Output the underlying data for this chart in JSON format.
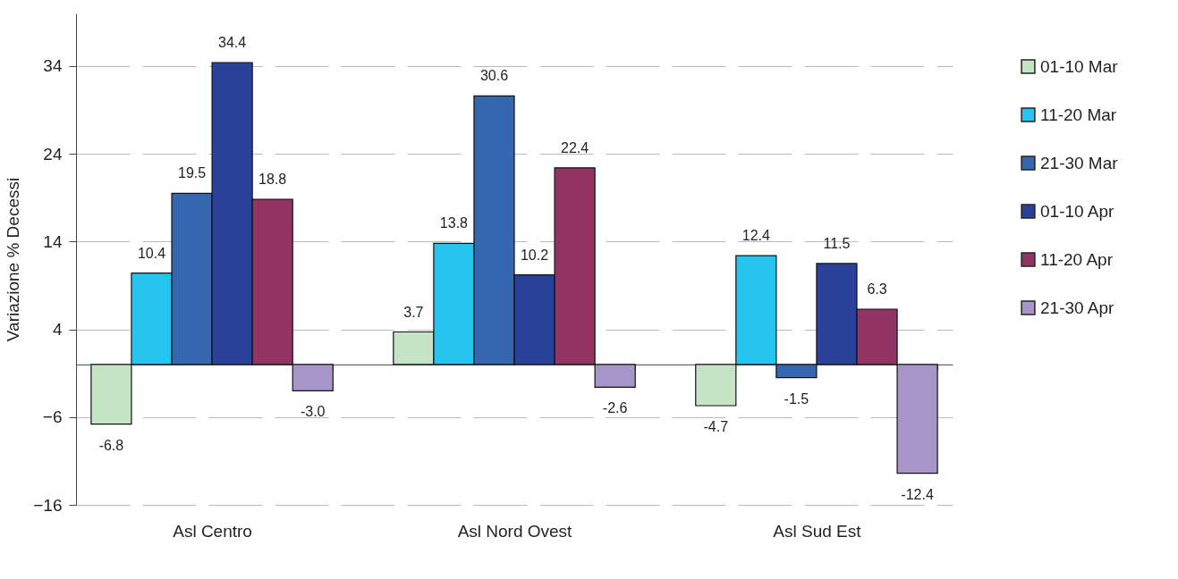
{
  "chart_data": {
    "type": "bar",
    "ylabel": "Variazione % Decessi",
    "categories": [
      "Asl Centro",
      "Asl Nord Ovest",
      "Asl Sud Est"
    ],
    "series": [
      {
        "name": "01-10 Mar",
        "color": "#c5e4c5",
        "values": [
          -6.8,
          3.7,
          -4.7
        ],
        "value_labels": [
          "-6.8",
          "3.7",
          "-4.7"
        ]
      },
      {
        "name": "11-20 Mar",
        "color": "#27c4f0",
        "values": [
          10.4,
          13.8,
          12.4
        ],
        "value_labels": [
          "10.4",
          "13.8",
          "12.4"
        ]
      },
      {
        "name": "21-30 Mar",
        "color": "#3566b0",
        "values": [
          19.5,
          30.6,
          -1.5
        ],
        "value_labels": [
          "19.5",
          "30.6",
          "-1.5"
        ]
      },
      {
        "name": "01-10 Apr",
        "color": "#2a419a",
        "values": [
          34.4,
          10.2,
          11.5
        ],
        "value_labels": [
          "34.4",
          "10.2",
          "11.5"
        ]
      },
      {
        "name": "11-20 Apr",
        "color": "#923565",
        "values": [
          18.8,
          22.4,
          6.3
        ],
        "value_labels": [
          "18.8",
          "22.4",
          "6.3"
        ]
      },
      {
        "name": "21-30 Apr",
        "color": "#a996c8",
        "values": [
          -3.0,
          -2.6,
          -12.4
        ],
        "value_labels": [
          "-3.0",
          "-2.6",
          "-12.4"
        ]
      }
    ],
    "ylim": [
      -16,
      40
    ],
    "yticks": [
      -16,
      -6,
      4,
      14,
      24,
      34
    ],
    "grid": "y",
    "legend": "right"
  }
}
